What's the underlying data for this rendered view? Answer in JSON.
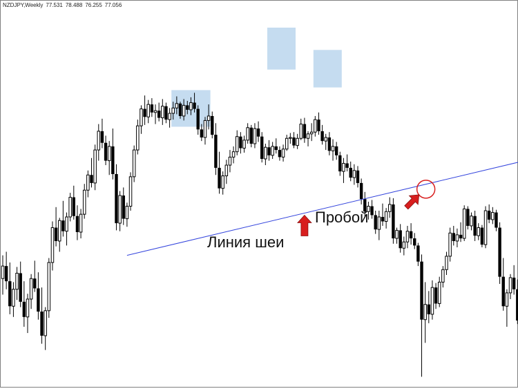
{
  "header": {
    "symbol": "NZDJPY,Weekly",
    "open": "77.531",
    "high": "78.488",
    "low": "76.255",
    "close": "77.056"
  },
  "annotations": {
    "neckline": "Линия шеи",
    "breakout": "Пробой"
  },
  "colors": {
    "background": "#ffffff",
    "candle": "#000000",
    "zone": "#c5dcf0",
    "neckline": "#3344dd",
    "arrow": "#d81e1e",
    "circle": "#d81e1e",
    "border": "#7f7f7f"
  },
  "chart_data": {
    "type": "candlestick",
    "title": "",
    "grid": false,
    "pattern": "head-and-shoulders",
    "candles_ohlc": [
      [
        58.2,
        60.8,
        56.4,
        59.6
      ],
      [
        59.6,
        61.2,
        57.0,
        57.9
      ],
      [
        57.9,
        60.0,
        54.2,
        55.1
      ],
      [
        55.1,
        57.8,
        53.9,
        57.0
      ],
      [
        57.0,
        59.5,
        55.8,
        58.8
      ],
      [
        58.8,
        60.1,
        55.0,
        55.6
      ],
      [
        55.6,
        57.9,
        52.8,
        53.9
      ],
      [
        53.9,
        56.5,
        52.1,
        55.9
      ],
      [
        55.9,
        58.7,
        54.8,
        58.2
      ],
      [
        58.2,
        60.2,
        56.7,
        57.1
      ],
      [
        57.1,
        58.9,
        53.6,
        54.5
      ],
      [
        54.5,
        57.2,
        50.9,
        51.8
      ],
      [
        51.8,
        55.0,
        50.2,
        54.6
      ],
      [
        54.6,
        60.5,
        53.8,
        60.0
      ],
      [
        60.0,
        64.6,
        59.1,
        63.9
      ],
      [
        63.9,
        66.2,
        61.8,
        62.4
      ],
      [
        62.4,
        65.0,
        61.2,
        64.7
      ],
      [
        64.7,
        66.9,
        62.9,
        63.5
      ],
      [
        63.5,
        65.6,
        61.9,
        65.1
      ],
      [
        65.1,
        67.8,
        64.6,
        67.3
      ],
      [
        67.3,
        68.6,
        64.8,
        65.2
      ],
      [
        65.2,
        66.4,
        62.5,
        63.4
      ],
      [
        63.4,
        66.0,
        62.7,
        65.4
      ],
      [
        65.4,
        68.8,
        64.9,
        68.1
      ],
      [
        68.1,
        70.3,
        67.3,
        69.8
      ],
      [
        69.8,
        71.7,
        68.4,
        68.9
      ],
      [
        68.9,
        73.2,
        68.1,
        72.6
      ],
      [
        72.6,
        75.5,
        71.4,
        74.7
      ],
      [
        74.7,
        76.1,
        72.8,
        73.4
      ],
      [
        73.4,
        74.2,
        70.9,
        71.4
      ],
      [
        71.4,
        73.6,
        69.8,
        73.0
      ],
      [
        73.0,
        75.0,
        69.3,
        69.9
      ],
      [
        69.9,
        71.0,
        63.6,
        64.4
      ],
      [
        64.4,
        68.0,
        63.5,
        67.5
      ],
      [
        67.5,
        68.4,
        64.2,
        64.9
      ],
      [
        64.9,
        66.7,
        64.0,
        66.3
      ],
      [
        66.3,
        70.1,
        65.8,
        69.6
      ],
      [
        69.6,
        73.1,
        69.0,
        72.6
      ],
      [
        72.6,
        76.0,
        72.1,
        75.3
      ],
      [
        75.3,
        77.6,
        74.4,
        77.2
      ],
      [
        77.2,
        78.7,
        75.4,
        76.3
      ],
      [
        76.3,
        78.2,
        75.6,
        77.7
      ],
      [
        77.7,
        78.4,
        76.3,
        76.8
      ],
      [
        76.8,
        77.7,
        75.5,
        77.0
      ],
      [
        77.0,
        77.9,
        75.8,
        76.2
      ],
      [
        76.2,
        78.3,
        75.4,
        77.5
      ],
      [
        77.5,
        77.9,
        75.6,
        76.0
      ],
      [
        76.0,
        77.3,
        75.1,
        76.7
      ],
      [
        76.7,
        78.0,
        76.0,
        77.3
      ],
      [
        77.3,
        78.6,
        76.6,
        77.8
      ],
      [
        77.8,
        78.0,
        76.1,
        76.4
      ],
      [
        76.4,
        78.3,
        75.9,
        77.6
      ],
      [
        77.6,
        78.1,
        76.6,
        77.1
      ],
      [
        77.1,
        78.5,
        76.5,
        77.9
      ],
      [
        77.9,
        79.0,
        76.8,
        77.2
      ],
      [
        77.2,
        77.6,
        74.3,
        74.9
      ],
      [
        74.9,
        75.5,
        73.6,
        74.0
      ],
      [
        74.0,
        76.3,
        73.2,
        75.9
      ],
      [
        75.9,
        77.7,
        74.9,
        76.4
      ],
      [
        76.4,
        76.9,
        73.9,
        74.3
      ],
      [
        74.3,
        75.6,
        69.8,
        70.6
      ],
      [
        70.6,
        72.4,
        67.7,
        68.3
      ],
      [
        68.3,
        70.2,
        67.6,
        69.7
      ],
      [
        69.7,
        71.5,
        68.8,
        70.9
      ],
      [
        70.9,
        72.6,
        70.1,
        71.8
      ],
      [
        71.8,
        73.0,
        71.1,
        72.4
      ],
      [
        72.4,
        74.8,
        72.0,
        74.1
      ],
      [
        74.1,
        74.6,
        72.2,
        72.8
      ],
      [
        72.8,
        74.2,
        72.3,
        73.7
      ],
      [
        73.7,
        75.6,
        73.3,
        75.1
      ],
      [
        75.1,
        75.4,
        72.9,
        73.3
      ],
      [
        73.3,
        75.6,
        72.8,
        75.0
      ],
      [
        75.0,
        75.8,
        73.5,
        74.1
      ],
      [
        74.1,
        74.6,
        71.2,
        71.6
      ],
      [
        71.6,
        73.3,
        70.9,
        72.9
      ],
      [
        72.9,
        73.7,
        71.4,
        72.0
      ],
      [
        72.0,
        73.5,
        71.6,
        73.0
      ],
      [
        73.0,
        73.9,
        72.2,
        72.6
      ],
      [
        72.6,
        73.0,
        71.4,
        71.8
      ],
      [
        71.8,
        73.2,
        71.3,
        72.7
      ],
      [
        72.7,
        74.3,
        72.5,
        73.9
      ],
      [
        73.9,
        74.5,
        73.3,
        74.0
      ],
      [
        74.0,
        74.6,
        72.8,
        73.1
      ],
      [
        73.1,
        74.4,
        72.7,
        73.9
      ],
      [
        73.9,
        76.1,
        73.7,
        75.5
      ],
      [
        75.5,
        76.2,
        73.4,
        73.9
      ],
      [
        73.9,
        74.7,
        73.0,
        74.4
      ],
      [
        74.4,
        75.6,
        73.6,
        74.6
      ],
      [
        74.6,
        76.4,
        74.1,
        76.0
      ],
      [
        76.0,
        76.8,
        74.3,
        74.7
      ],
      [
        74.7,
        75.4,
        73.2,
        73.6
      ],
      [
        73.6,
        74.4,
        72.6,
        74.0
      ],
      [
        74.0,
        74.6,
        72.0,
        72.5
      ],
      [
        72.5,
        73.8,
        71.4,
        73.0
      ],
      [
        73.0,
        73.5,
        71.5,
        72.0
      ],
      [
        72.0,
        72.4,
        69.7,
        70.2
      ],
      [
        70.2,
        71.7,
        68.9,
        71.1
      ],
      [
        71.1,
        72.1,
        70.2,
        70.6
      ],
      [
        70.6,
        71.3,
        69.1,
        69.5
      ],
      [
        69.5,
        71.0,
        68.7,
        70.3
      ],
      [
        70.3,
        70.8,
        68.4,
        68.9
      ],
      [
        68.9,
        69.4,
        66.5,
        67.1
      ],
      [
        67.1,
        67.9,
        65.0,
        65.7
      ],
      [
        65.7,
        66.8,
        64.8,
        66.3
      ],
      [
        66.3,
        67.0,
        64.9,
        65.3
      ],
      [
        65.3,
        65.8,
        63.2,
        63.7
      ],
      [
        63.7,
        65.8,
        62.5,
        65.1
      ],
      [
        65.1,
        66.6,
        64.1,
        64.6
      ],
      [
        64.6,
        66.1,
        63.8,
        65.7
      ],
      [
        65.7,
        67.3,
        65.0,
        66.5
      ],
      [
        66.5,
        67.2,
        62.1,
        62.7
      ],
      [
        62.7,
        63.9,
        62.1,
        63.6
      ],
      [
        63.6,
        64.3,
        61.1,
        61.6
      ],
      [
        61.6,
        62.9,
        60.8,
        62.3
      ],
      [
        62.3,
        64.1,
        61.6,
        63.5
      ],
      [
        63.5,
        64.4,
        62.0,
        62.7
      ],
      [
        62.7,
        63.3,
        61.5,
        61.9
      ],
      [
        61.9,
        62.2,
        59.6,
        60.1
      ],
      [
        60.1,
        60.9,
        47.2,
        53.6
      ],
      [
        53.6,
        57.8,
        51.0,
        55.3
      ],
      [
        55.3,
        56.8,
        53.2,
        54.2
      ],
      [
        54.2,
        58.0,
        53.6,
        57.2
      ],
      [
        57.2,
        57.7,
        54.8,
        55.4
      ],
      [
        55.4,
        58.4,
        55.0,
        57.8
      ],
      [
        57.8,
        59.6,
        57.2,
        59.2
      ],
      [
        59.2,
        61.2,
        58.6,
        60.7
      ],
      [
        60.7,
        63.9,
        60.1,
        63.3
      ],
      [
        63.3,
        64.1,
        61.9,
        62.4
      ],
      [
        62.4,
        63.8,
        61.7,
        63.1
      ],
      [
        63.1,
        64.5,
        62.3,
        62.7
      ],
      [
        62.7,
        66.4,
        62.4,
        66.0
      ],
      [
        66.0,
        66.3,
        63.7,
        64.1
      ],
      [
        64.1,
        65.6,
        63.6,
        65.2
      ],
      [
        65.2,
        65.8,
        62.4,
        63.0
      ],
      [
        63.0,
        64.4,
        62.5,
        63.9
      ],
      [
        63.9,
        64.2,
        61.7,
        62.0
      ],
      [
        62.0,
        66.3,
        61.6,
        65.8
      ],
      [
        65.8,
        66.5,
        64.4,
        64.8
      ],
      [
        64.8,
        66.2,
        64.3,
        65.6
      ],
      [
        65.6,
        65.9,
        63.5,
        63.9
      ],
      [
        63.9,
        64.5,
        57.6,
        58.4
      ],
      [
        58.4,
        60.5,
        54.6,
        55.1
      ],
      [
        55.1,
        57.0,
        52.8,
        56.6
      ],
      [
        56.6,
        58.7,
        55.9,
        58.3
      ],
      [
        58.3,
        59.7,
        56.4,
        57.0
      ],
      [
        57.0,
        58.1,
        53.1,
        53.5
      ],
      [
        53.5,
        56.7,
        52.9,
        56.0
      ],
      [
        56.0,
        58.9,
        55.4,
        58.5
      ],
      [
        58.5,
        59.5,
        55.8,
        56.2
      ],
      [
        56.2,
        57.5,
        53.7,
        57.0
      ],
      [
        57.0,
        58.1,
        54.4,
        55.0
      ],
      [
        55.0,
        57.4,
        54.3,
        56.9
      ]
    ],
    "shoulder_zones": [
      {
        "label": "left-shoulder",
        "from_index": 48,
        "to_index": 58,
        "low": 75.2,
        "high": 79.3
      },
      {
        "label": "head",
        "from_index": 75,
        "to_index": 82,
        "low": 81.6,
        "high": 86.3
      },
      {
        "label": "right-shoulder",
        "from_index": 88,
        "to_index": 95,
        "low": 79.6,
        "high": 83.8
      }
    ],
    "neckline": {
      "from_index": 35,
      "from_price": 60.8,
      "to_index": 146,
      "to_price": 71.3
    },
    "neckline_marker_index": 85,
    "breakout_index": 119,
    "y_range": [
      47,
      88
    ]
  }
}
